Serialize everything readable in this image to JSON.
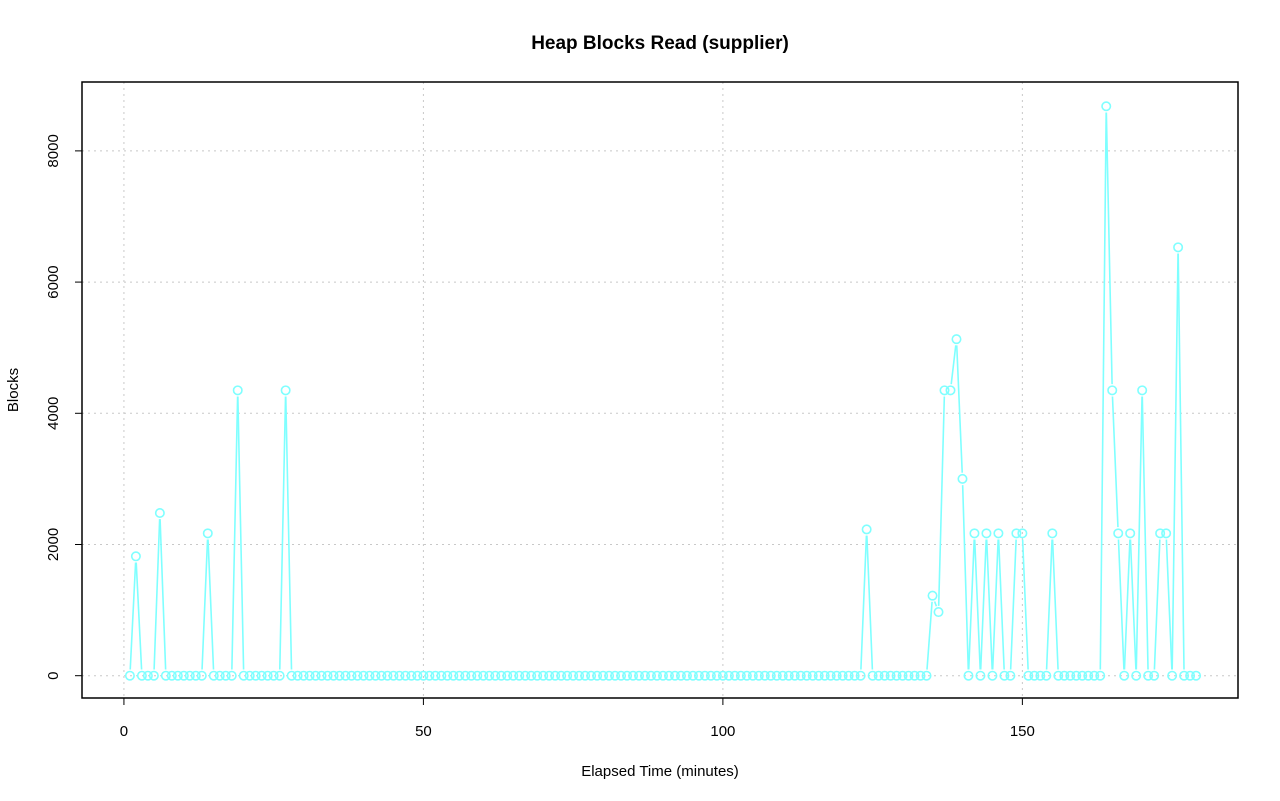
{
  "chart_data": {
    "type": "line",
    "title": "Heap Blocks Read (supplier)",
    "xlabel": "Elapsed Time (minutes)",
    "ylabel": "Blocks",
    "xlim": [
      -7,
      186
    ],
    "ylim": [
      -340,
      9050
    ],
    "x_ticks": [
      0,
      50,
      100,
      150
    ],
    "y_ticks": [
      0,
      2000,
      4000,
      6000,
      8000
    ],
    "grid": true,
    "series_color": "#7fffff",
    "series": [
      {
        "x_start": 1,
        "values": [
          0,
          1820,
          0,
          0,
          0,
          2480,
          0,
          0,
          0,
          0,
          0,
          0,
          0,
          2170,
          0,
          0,
          0,
          0,
          4350,
          0,
          0,
          0,
          0,
          0,
          0,
          0,
          4350,
          0,
          0,
          0,
          0,
          0,
          0,
          0,
          0,
          0,
          0,
          0,
          0,
          0,
          0,
          0,
          0,
          0,
          0,
          0,
          0,
          0,
          0,
          0,
          0,
          0,
          0,
          0,
          0,
          0,
          0,
          0,
          0,
          0,
          0,
          0,
          0,
          0,
          0,
          0,
          0,
          0,
          0,
          0,
          0,
          0,
          0,
          0,
          0,
          0,
          0,
          0,
          0,
          0,
          0,
          0,
          0,
          0,
          0,
          0,
          0,
          0,
          0,
          0,
          0,
          0,
          0,
          0,
          0,
          0,
          0,
          0,
          0,
          0,
          0,
          0,
          0,
          0,
          0,
          0,
          0,
          0,
          0,
          0,
          0,
          0,
          0,
          0,
          0,
          0,
          0,
          0,
          0,
          0,
          0,
          0,
          0,
          2230,
          0,
          0,
          0,
          0,
          0,
          0,
          0,
          0,
          0,
          0,
          1220,
          970,
          4350,
          4350,
          5130,
          3000,
          0,
          2170,
          0,
          2170,
          0,
          2170,
          0,
          0,
          2170,
          2170,
          0,
          0,
          0,
          0,
          2170,
          0,
          0,
          0,
          0,
          0,
          0,
          0,
          0,
          8680,
          4350,
          2170,
          0,
          2170,
          0,
          4350,
          0,
          0,
          2170,
          2170,
          0,
          6530,
          0,
          0,
          0
        ]
      }
    ]
  }
}
